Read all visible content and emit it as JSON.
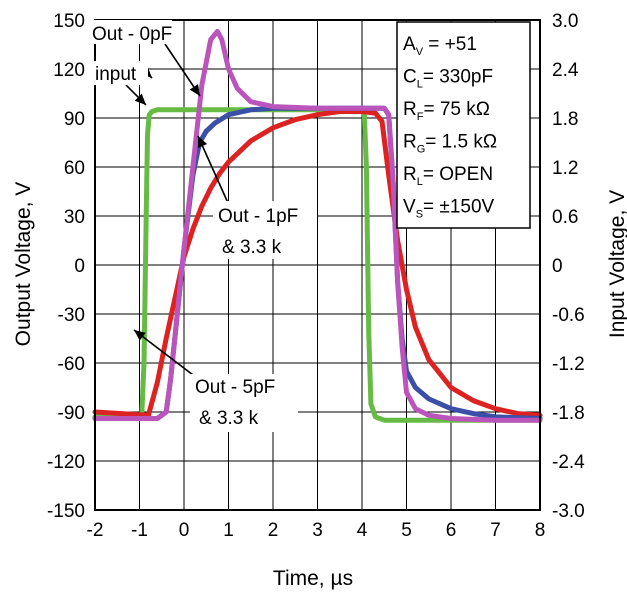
{
  "chart_data": {
    "type": "line",
    "xlabel": "Time, µs",
    "ylabel": "Output Voltage, V",
    "y2label": "Input Voltage, V",
    "xlim": [
      -2,
      8
    ],
    "ylim": [
      -150,
      150
    ],
    "y2lim": [
      -3.0,
      3.0
    ],
    "x_ticks": [
      "-2",
      "-1",
      "0",
      "1",
      "2",
      "3",
      "4",
      "5",
      "6",
      "7",
      "8"
    ],
    "y_ticks": [
      "150",
      "120",
      "90",
      "60",
      "30",
      "0",
      "-30",
      "-60",
      "-90",
      "-120",
      "-150"
    ],
    "y2_ticks": [
      "3.0",
      "2.4",
      "1.8",
      "1.2",
      "0.6",
      "0",
      "-0.6",
      "-1.2",
      "-1.8",
      "-2.4",
      "-3.0"
    ],
    "grid": true,
    "colors": {
      "input": "#66bb44",
      "out_0pf": "#bb55bb",
      "out_1pf": "#3a4fa8",
      "out_5pf": "#dd2222"
    },
    "annotations": [
      {
        "id": "out0",
        "text": "Out - 0pF"
      },
      {
        "id": "input",
        "text": "input"
      },
      {
        "id": "out1",
        "lines": [
          "Out - 1pF",
          "& 3.3 k"
        ]
      },
      {
        "id": "out5",
        "lines": [
          "Out - 5pF",
          "& 3.3 k"
        ]
      }
    ],
    "conditions": [
      {
        "base": "A",
        "sub": "V",
        "rest": " = +51"
      },
      {
        "base": "C",
        "sub": "L",
        "rest": "= 330pF"
      },
      {
        "base": "R",
        "sub": "F",
        "rest": "= 75 kΩ"
      },
      {
        "base": "R",
        "sub": "G",
        "rest": "= 1.5 kΩ"
      },
      {
        "base": "R",
        "sub": "L",
        "rest": "= OPEN"
      },
      {
        "base": "V",
        "sub": "S",
        "rest": "= ±150V"
      }
    ],
    "series": [
      {
        "name": "input",
        "x": [
          -2.0,
          -0.95,
          -0.9,
          -0.85,
          -0.82,
          -0.78,
          -0.72,
          -0.6,
          0.0,
          2.0,
          4.0,
          4.05,
          4.1,
          4.15,
          4.2,
          4.3,
          4.5,
          6.0,
          8.0
        ],
        "y": [
          -93,
          -93,
          -60,
          30,
          80,
          92,
          94,
          95,
          95,
          95,
          95,
          94,
          60,
          -40,
          -85,
          -93,
          -95,
          -95,
          -95
        ]
      },
      {
        "name": "out_0pf",
        "x": [
          -2.0,
          -0.6,
          -0.4,
          -0.3,
          -0.15,
          0.0,
          0.2,
          0.4,
          0.6,
          0.75,
          0.85,
          1.0,
          1.2,
          1.5,
          2.0,
          3.0,
          4.0,
          4.5,
          4.6,
          4.7,
          4.8,
          4.9,
          5.0,
          5.2,
          5.5,
          6.0,
          7.0,
          8.0
        ],
        "y": [
          -94,
          -94,
          -90,
          -70,
          -30,
          10,
          60,
          110,
          138,
          143,
          138,
          120,
          108,
          100,
          97,
          96,
          96,
          96,
          92,
          50,
          -10,
          -50,
          -78,
          -88,
          -92,
          -94,
          -95,
          -95
        ]
      },
      {
        "name": "out_1pf",
        "x": [
          -2.0,
          -0.6,
          -0.4,
          -0.3,
          -0.15,
          0.0,
          0.2,
          0.35,
          0.5,
          0.7,
          1.0,
          1.5,
          2.0,
          3.0,
          4.0,
          4.5,
          4.6,
          4.7,
          4.8,
          4.9,
          5.0,
          5.2,
          5.5,
          6.0,
          6.5,
          7.0,
          8.0
        ],
        "y": [
          -94,
          -94,
          -90,
          -70,
          -30,
          10,
          55,
          75,
          82,
          87,
          92,
          95,
          96,
          96,
          96,
          96,
          92,
          50,
          -10,
          -45,
          -65,
          -75,
          -82,
          -88,
          -91,
          -93,
          -94
        ]
      },
      {
        "name": "out_5pf",
        "x": [
          -2.0,
          -0.8,
          -0.6,
          -0.4,
          -0.2,
          0.0,
          0.2,
          0.4,
          0.6,
          0.8,
          1.0,
          1.5,
          2.0,
          2.5,
          3.0,
          3.5,
          4.0,
          4.3,
          4.45,
          4.6,
          4.8,
          5.0,
          5.2,
          5.5,
          6.0,
          6.5,
          7.0,
          7.5,
          8.0
        ],
        "y": [
          -90,
          -92,
          -72,
          -45,
          -20,
          5,
          22,
          36,
          47,
          56,
          63,
          76,
          84,
          89,
          92,
          94,
          94,
          93,
          88,
          55,
          15,
          -15,
          -38,
          -58,
          -75,
          -83,
          -88,
          -91,
          -92
        ]
      }
    ]
  }
}
